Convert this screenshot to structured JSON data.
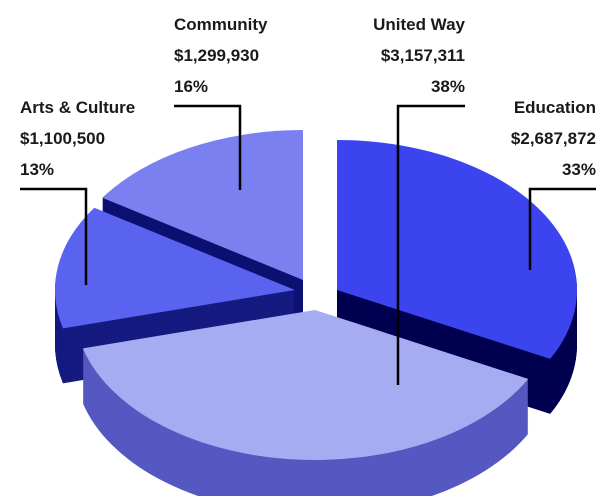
{
  "chart_data": {
    "type": "pie",
    "title": "",
    "slices": [
      {
        "name": "Education",
        "amount": "$2,687,872",
        "percent": "33%",
        "value": 2687872,
        "color": "#3b44ef",
        "side": "#000050"
      },
      {
        "name": "United Way",
        "amount": "$3,157,311",
        "percent": "38%",
        "value": 3157311,
        "color": "#a6acf2",
        "side": "#5558c0"
      },
      {
        "name": "Arts & Culture",
        "amount": "$1,100,500",
        "percent": "13%",
        "value": 1100500,
        "color": "#5a62f0",
        "side": "#141a80"
      },
      {
        "name": "Community",
        "amount": "$1,299,930",
        "percent": "16%",
        "value": 1299930,
        "color": "#7a80f0",
        "side": "#0c1070"
      }
    ]
  }
}
